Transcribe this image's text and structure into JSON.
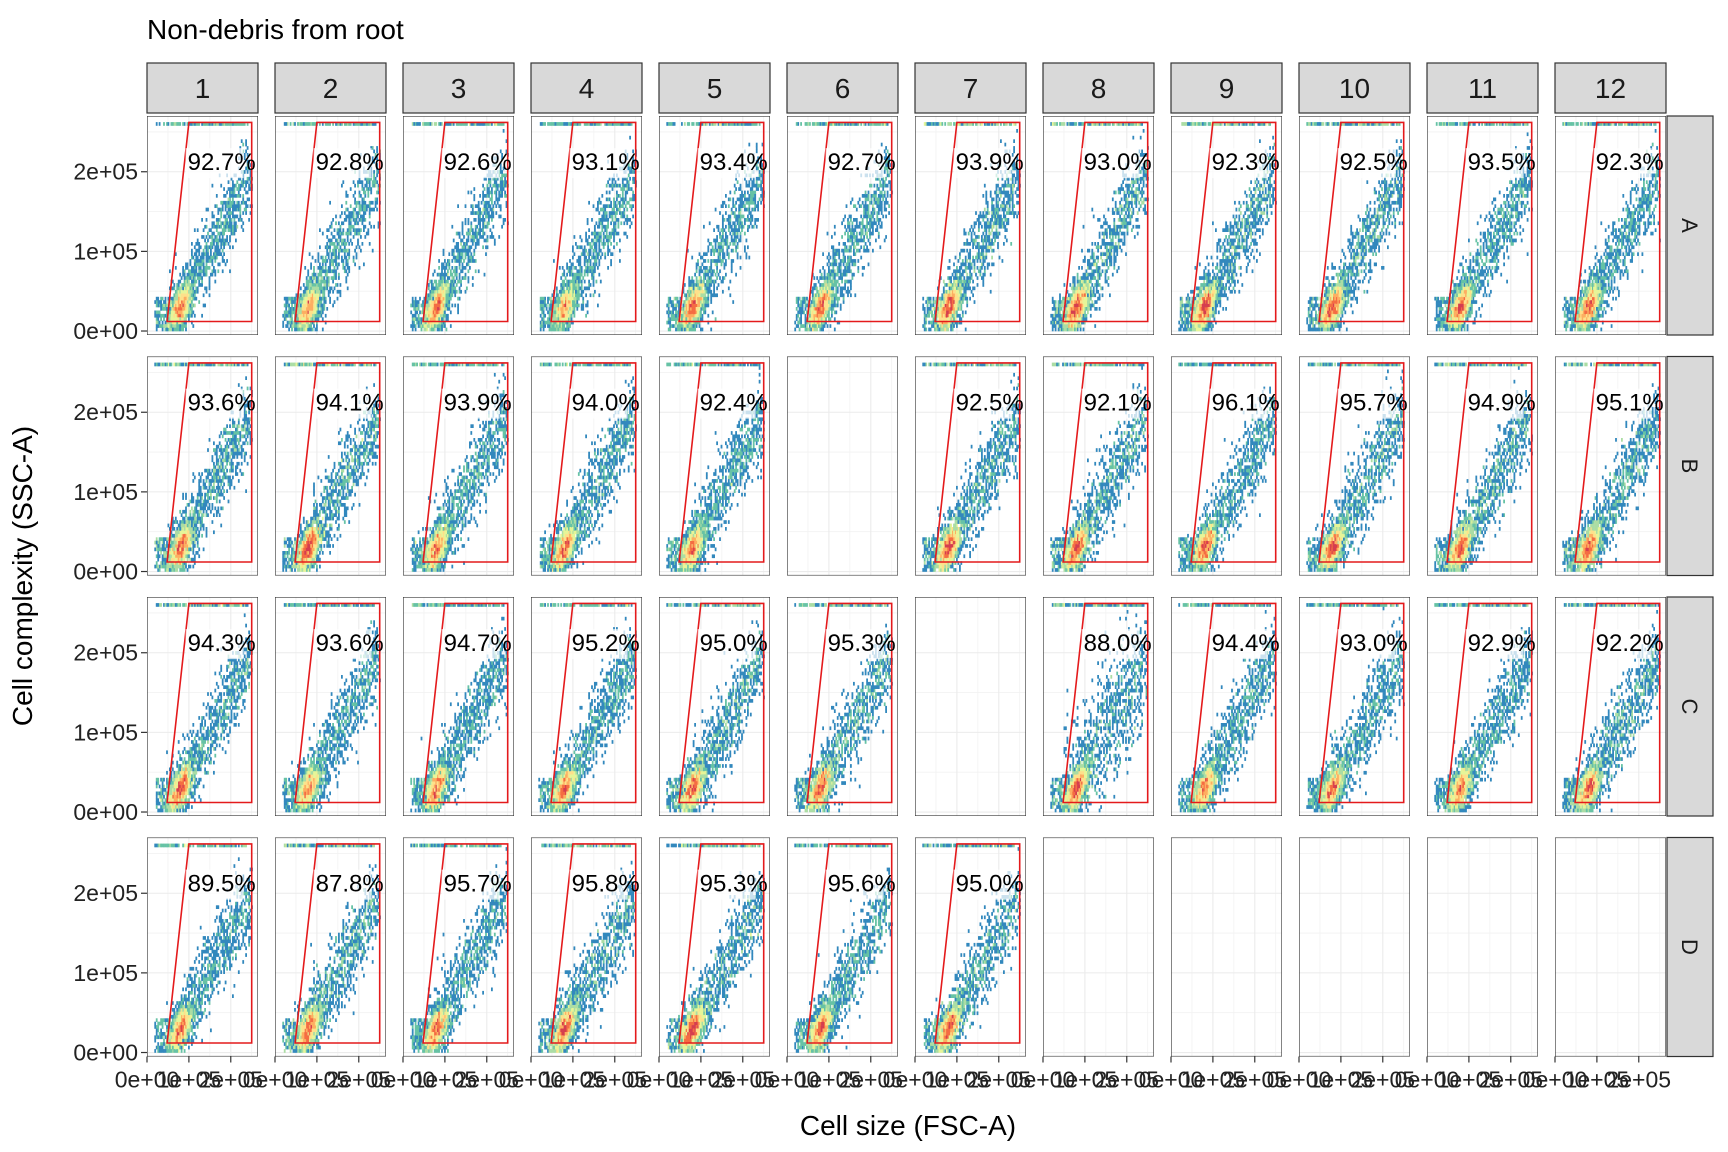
{
  "chart_data": {
    "type": "scatter",
    "title": "Non-debris from root",
    "xlabel": "Cell size (FSC-A)",
    "ylabel": "Cell complexity (SSC-A)",
    "columns": [
      "1",
      "2",
      "3",
      "4",
      "5",
      "6",
      "7",
      "8",
      "9",
      "10",
      "11",
      "12"
    ],
    "rows": [
      "A",
      "B",
      "C",
      "D"
    ],
    "xlim": [
      0,
      265000
    ],
    "ylim": [
      -5000,
      270000
    ],
    "x_ticks": [
      {
        "value": 0,
        "label": "0e+00"
      },
      {
        "value": 100000,
        "label": "1e+05"
      },
      {
        "value": 200000,
        "label": "2e+05"
      }
    ],
    "y_ticks": [
      {
        "value": 0,
        "label": "0e+00"
      },
      {
        "value": 100000,
        "label": "1e+05"
      },
      {
        "value": 200000,
        "label": "2e+05"
      }
    ],
    "gate": {
      "name": "Non-debris",
      "color": "#e41a1c",
      "polygon": [
        [
          48000,
          12000
        ],
        [
          100000,
          262000
        ],
        [
          250000,
          262000
        ],
        [
          250000,
          12000
        ]
      ]
    },
    "colormap": [
      "#5e4fa2",
      "#3288bd",
      "#66c2a5",
      "#abdda4",
      "#e6f598",
      "#fee08b",
      "#fdae61",
      "#f46d43",
      "#d53e4f"
    ],
    "percent_labels": {
      "A": [
        "92.7%",
        "92.8%",
        "92.6%",
        "93.1%",
        "93.4%",
        "92.7%",
        "93.9%",
        "93.0%",
        "92.3%",
        "92.5%",
        "93.5%",
        "92.3%"
      ],
      "B": [
        "93.6%",
        "94.1%",
        "93.9%",
        "94.0%",
        "92.4%",
        null,
        "92.5%",
        "92.1%",
        "96.1%",
        "95.7%",
        "94.9%",
        "95.1%"
      ],
      "C": [
        "94.3%",
        "93.6%",
        "94.7%",
        "95.2%",
        "95.0%",
        "95.3%",
        null,
        "88.0%",
        "94.4%",
        "93.0%",
        "92.9%",
        "92.2%"
      ],
      "D": [
        "89.5%",
        "87.8%",
        "95.7%",
        "95.8%",
        "95.3%",
        "95.6%",
        "95.0%",
        null,
        null,
        null,
        null,
        null
      ]
    }
  }
}
